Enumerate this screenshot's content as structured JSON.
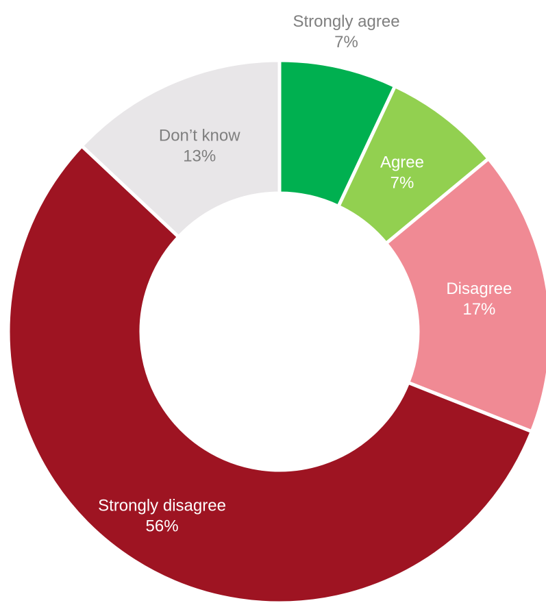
{
  "chart_data": {
    "type": "donut",
    "categories": [
      "Strongly agree",
      "Agree",
      "Disagree",
      "Strongly disagree",
      "Don’t know"
    ],
    "values": [
      7,
      7,
      17,
      56,
      13
    ],
    "value_labels": [
      "7%",
      "7%",
      "17%",
      "56%",
      "13%"
    ],
    "colors": [
      "#00b050",
      "#92d050",
      "#f08a94",
      "#9e1422",
      "#e8e6e8"
    ]
  }
}
